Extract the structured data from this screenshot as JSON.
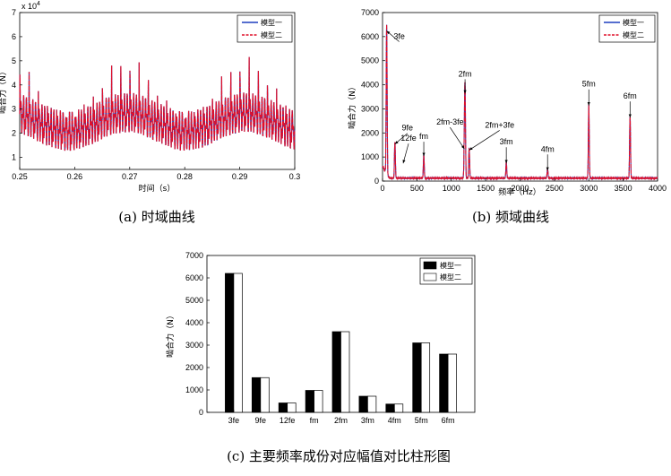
{
  "chart_data": [
    {
      "type": "line",
      "panel": "a",
      "caption": "(a)  时域曲线",
      "xlabel": "时间（s）",
      "ylabel": "啮合力（N）",
      "y_exponent_label": "x 10",
      "y_exponent_power": "4",
      "xlim": [
        0.25,
        0.3
      ],
      "ylim": [
        0.5,
        7
      ],
      "xticks": [
        "0.25",
        "0.26",
        "0.27",
        "0.28",
        "0.29",
        "0.3"
      ],
      "yticks": [
        "1",
        "2",
        "3",
        "4",
        "5",
        "6",
        "7"
      ],
      "legend_position": "top-right",
      "series": [
        {
          "name": "模型一",
          "color": "#1f3fbf"
        },
        {
          "name": "模型二",
          "color": "#e0102a"
        }
      ],
      "low_band_range": [
        1.5,
        3.2
      ],
      "peak_range": [
        2.8,
        5.3
      ]
    },
    {
      "type": "line",
      "panel": "b",
      "caption": "(b)  频域曲线",
      "xlabel": "频率（Hz）",
      "ylabel": "啮合力（N）",
      "xlim": [
        0,
        4000
      ],
      "ylim": [
        0,
        7000
      ],
      "xticks": [
        "0",
        "500",
        "1000",
        "1500",
        "2000",
        "2500",
        "3000",
        "3500",
        "4000"
      ],
      "yticks": [
        "0",
        "1000",
        "2000",
        "3000",
        "4000",
        "5000",
        "6000",
        "7000"
      ],
      "legend_position": "top-right",
      "series": [
        {
          "name": "模型一",
          "color": "#1f3fbf"
        },
        {
          "name": "模型二",
          "color": "#e0102a"
        }
      ],
      "peaks": [
        {
          "x": 60,
          "y": 6200
        },
        {
          "x": 180,
          "y": 1500
        },
        {
          "x": 600,
          "y": 1000
        },
        {
          "x": 1190,
          "y": 1300
        },
        {
          "x": 1200,
          "y": 3600
        },
        {
          "x": 1260,
          "y": 1250
        },
        {
          "x": 1800,
          "y": 700
        },
        {
          "x": 2400,
          "y": 400
        },
        {
          "x": 3000,
          "y": 3100
        },
        {
          "x": 3600,
          "y": 2600
        }
      ],
      "annotations": [
        {
          "label": "3fe",
          "x": 60,
          "y": 6200
        },
        {
          "label": "9fe",
          "x": 180,
          "y": 1500
        },
        {
          "label": "12fe",
          "x": 300,
          "y": 700
        },
        {
          "label": "fm",
          "x": 600,
          "y": 1000
        },
        {
          "label": "2fm-3fe",
          "x": 1190,
          "y": 1300
        },
        {
          "label": "2fm",
          "x": 1200,
          "y": 3600
        },
        {
          "label": "2fm+3fe",
          "x": 1260,
          "y": 1250
        },
        {
          "label": "3fm",
          "x": 1800,
          "y": 700
        },
        {
          "label": "4fm",
          "x": 2400,
          "y": 400
        },
        {
          "label": "5fm",
          "x": 3000,
          "y": 3100
        },
        {
          "label": "6fm",
          "x": 3600,
          "y": 2600
        }
      ]
    },
    {
      "type": "bar",
      "panel": "c",
      "caption": "(c)  主要频率成份对应幅值对比柱形图",
      "ylabel": "啮合力（N）",
      "ylim": [
        0,
        7000
      ],
      "yticks": [
        "0",
        "1000",
        "2000",
        "3000",
        "4000",
        "5000",
        "6000",
        "7000"
      ],
      "categories": [
        "3fe",
        "9fe",
        "12fe",
        "fm",
        "2fm",
        "3fm",
        "4fm",
        "5fm",
        "6fm"
      ],
      "legend_position": "top-right",
      "series": [
        {
          "name": "模型一",
          "color": "#000000",
          "values": [
            6200,
            1550,
            420,
            980,
            3600,
            720,
            370,
            3100,
            2600
          ]
        },
        {
          "name": "模型二",
          "color": "#ffffff",
          "values": [
            6200,
            1550,
            420,
            980,
            3600,
            720,
            370,
            3100,
            2600
          ]
        }
      ]
    }
  ]
}
